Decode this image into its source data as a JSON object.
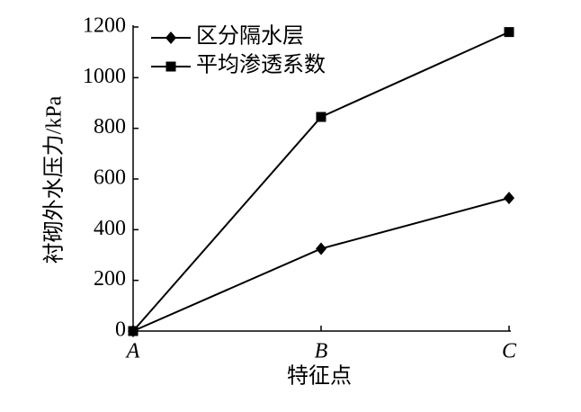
{
  "chart_data": {
    "type": "line",
    "x_label": "特征点",
    "y_label": "衬砌外水压力/kPa",
    "categories": [
      "A",
      "B",
      "C"
    ],
    "series": [
      {
        "name": "区分隔水层",
        "color": "#000000",
        "marker": "diamond",
        "values": [
          0,
          325,
          525
        ]
      },
      {
        "name": "平均渗透系数",
        "color": "#000000",
        "marker": "square",
        "values": [
          0,
          845,
          1180
        ]
      }
    ],
    "ylim": [
      0,
      1200
    ],
    "yticks": [
      0,
      200,
      400,
      600,
      800,
      1000,
      1200
    ],
    "legend": "upper left"
  }
}
